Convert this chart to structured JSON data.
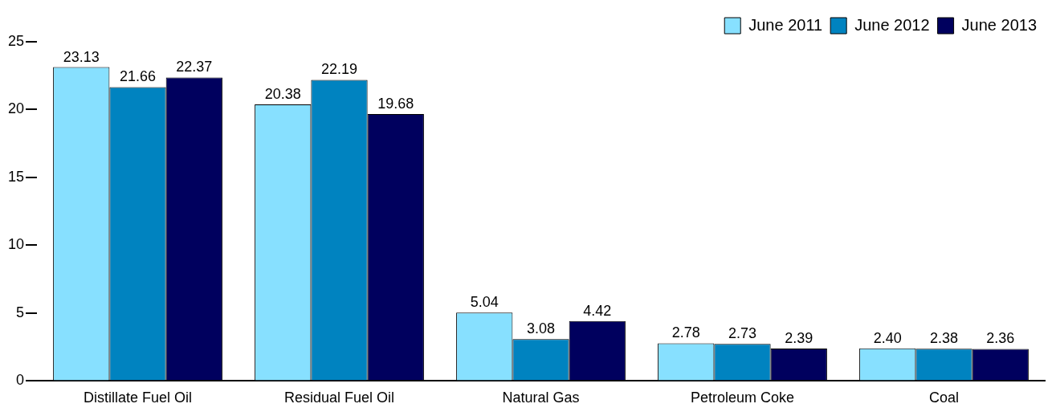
{
  "chart_data": {
    "type": "bar",
    "categories": [
      "Distillate Fuel Oil",
      "Residual Fuel Oil",
      "Natural Gas",
      "Petroleum Coke",
      "Coal"
    ],
    "series": [
      {
        "name": "June 2011",
        "color": "#87e0ff",
        "values": [
          23.13,
          20.38,
          5.04,
          2.78,
          2.4
        ]
      },
      {
        "name": "June 2012",
        "color": "#0083c0",
        "values": [
          21.66,
          22.19,
          3.08,
          2.73,
          2.38
        ]
      },
      {
        "name": "June 2013",
        "color": "#00005e",
        "values": [
          22.37,
          19.68,
          4.42,
          2.39,
          2.36
        ]
      }
    ],
    "ylim": [
      0,
      25
    ],
    "yticks": [
      0,
      5,
      10,
      15,
      20,
      25
    ],
    "grid": false,
    "legend": "top right",
    "value_labels": [
      [
        "23.13",
        "20.38",
        "5.04",
        "2.78",
        "2.40"
      ],
      [
        "21.66",
        "22.19",
        "3.08",
        "2.73",
        "2.38"
      ],
      [
        "22.37",
        "19.68",
        "4.42",
        "2.39",
        "2.36"
      ]
    ]
  }
}
